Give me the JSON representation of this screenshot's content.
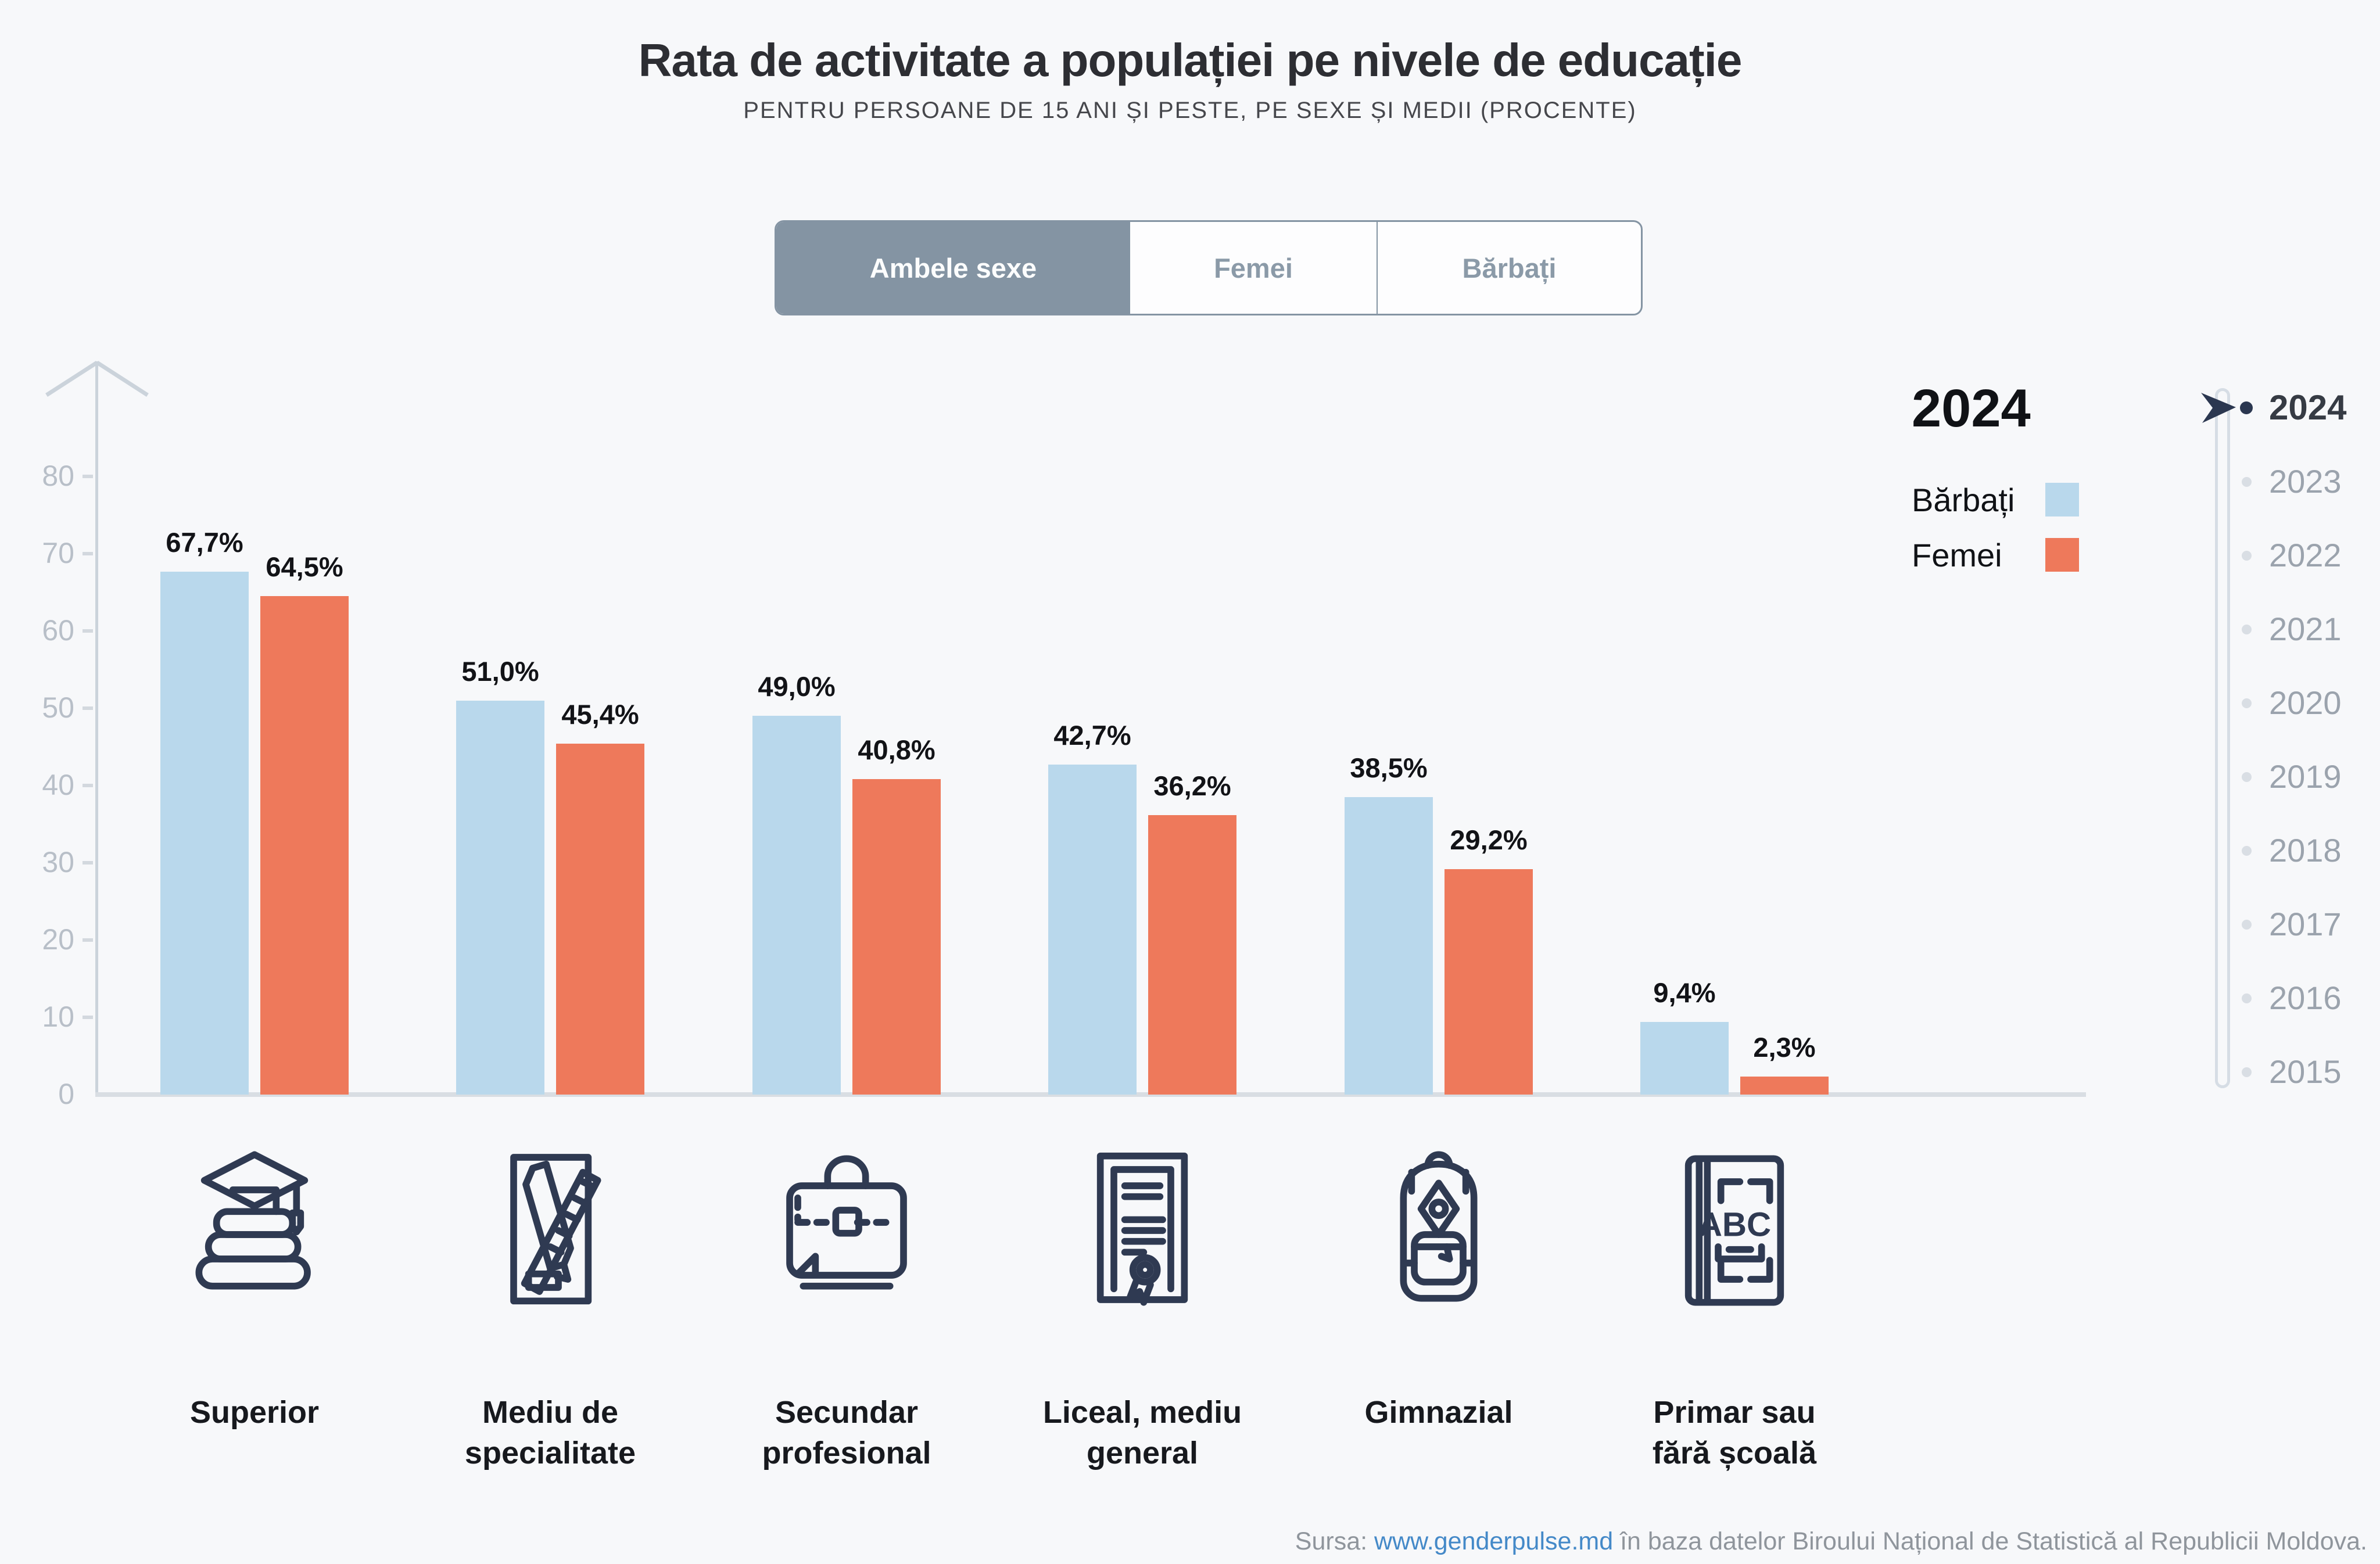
{
  "title": "Rata de activitate a populației pe nivele de educație",
  "subtitle": "PENTRU PERSOANE DE 15 ANI ȘI PESTE, PE SEXE ȘI MEDII (PROCENTE)",
  "tabs": [
    {
      "label": "Ambele sexe",
      "selected": true
    },
    {
      "label": "Femei",
      "selected": false
    },
    {
      "label": "Bărbați",
      "selected": false
    }
  ],
  "legend": {
    "year": "2024",
    "items": [
      {
        "name": "Bărbați",
        "color": "#B9D8EC"
      },
      {
        "name": "Femei",
        "color": "#EE795B"
      }
    ]
  },
  "timeline": {
    "years": [
      "2024",
      "2023",
      "2022",
      "2021",
      "2020",
      "2019",
      "2018",
      "2017",
      "2016",
      "2015"
    ],
    "active": "2024"
  },
  "chart_data": {
    "type": "bar",
    "categories": [
      "Superior",
      "Mediu de specialitate",
      "Secundar profesional",
      "Liceal, mediu general",
      "Gimnazial",
      "Primar sau fără școală"
    ],
    "series": [
      {
        "name": "Bărbați",
        "color": "#B9D8EC",
        "values": [
          67.7,
          51.0,
          49.0,
          42.7,
          38.5,
          9.4
        ],
        "labels": [
          "67,7%",
          "51,0%",
          "49,0%",
          "42,7%",
          "38,5%",
          "9,4%"
        ]
      },
      {
        "name": "Femei",
        "color": "#EE795B",
        "values": [
          64.5,
          45.4,
          40.8,
          36.2,
          29.2,
          2.3
        ],
        "labels": [
          "64,5%",
          "45,4%",
          "40,8%",
          "36,2%",
          "29,2%",
          "2,3%"
        ]
      }
    ],
    "ylim": [
      0,
      80
    ],
    "yticks": [
      0,
      10,
      20,
      30,
      40,
      50,
      60,
      70,
      80
    ],
    "grid": false,
    "legend_position": "top-right",
    "xlabel": "",
    "ylabel": ""
  },
  "icons": [
    {
      "name": "books-graduation-cap-icon"
    },
    {
      "name": "drawing-board-ruler-pencil-icon"
    },
    {
      "name": "briefcase-icon"
    },
    {
      "name": "diploma-icon"
    },
    {
      "name": "backpack-icon"
    },
    {
      "name": "abc-book-icon",
      "text": "ABC"
    }
  ],
  "colors": {
    "background": "#F7F8FA",
    "bar_men": "#B9D8EC",
    "bar_women": "#EE795B",
    "tab_selected_bg": "#8494A3",
    "icon_stroke": "#2F3A52",
    "timeline_active": "#2B3750",
    "link": "#4489C8"
  },
  "footer": {
    "prefix": "Sursa: ",
    "link": "www.genderpulse.md",
    "suffix": " în baza datelor Biroului Național de Statistică al Republicii Moldova."
  }
}
